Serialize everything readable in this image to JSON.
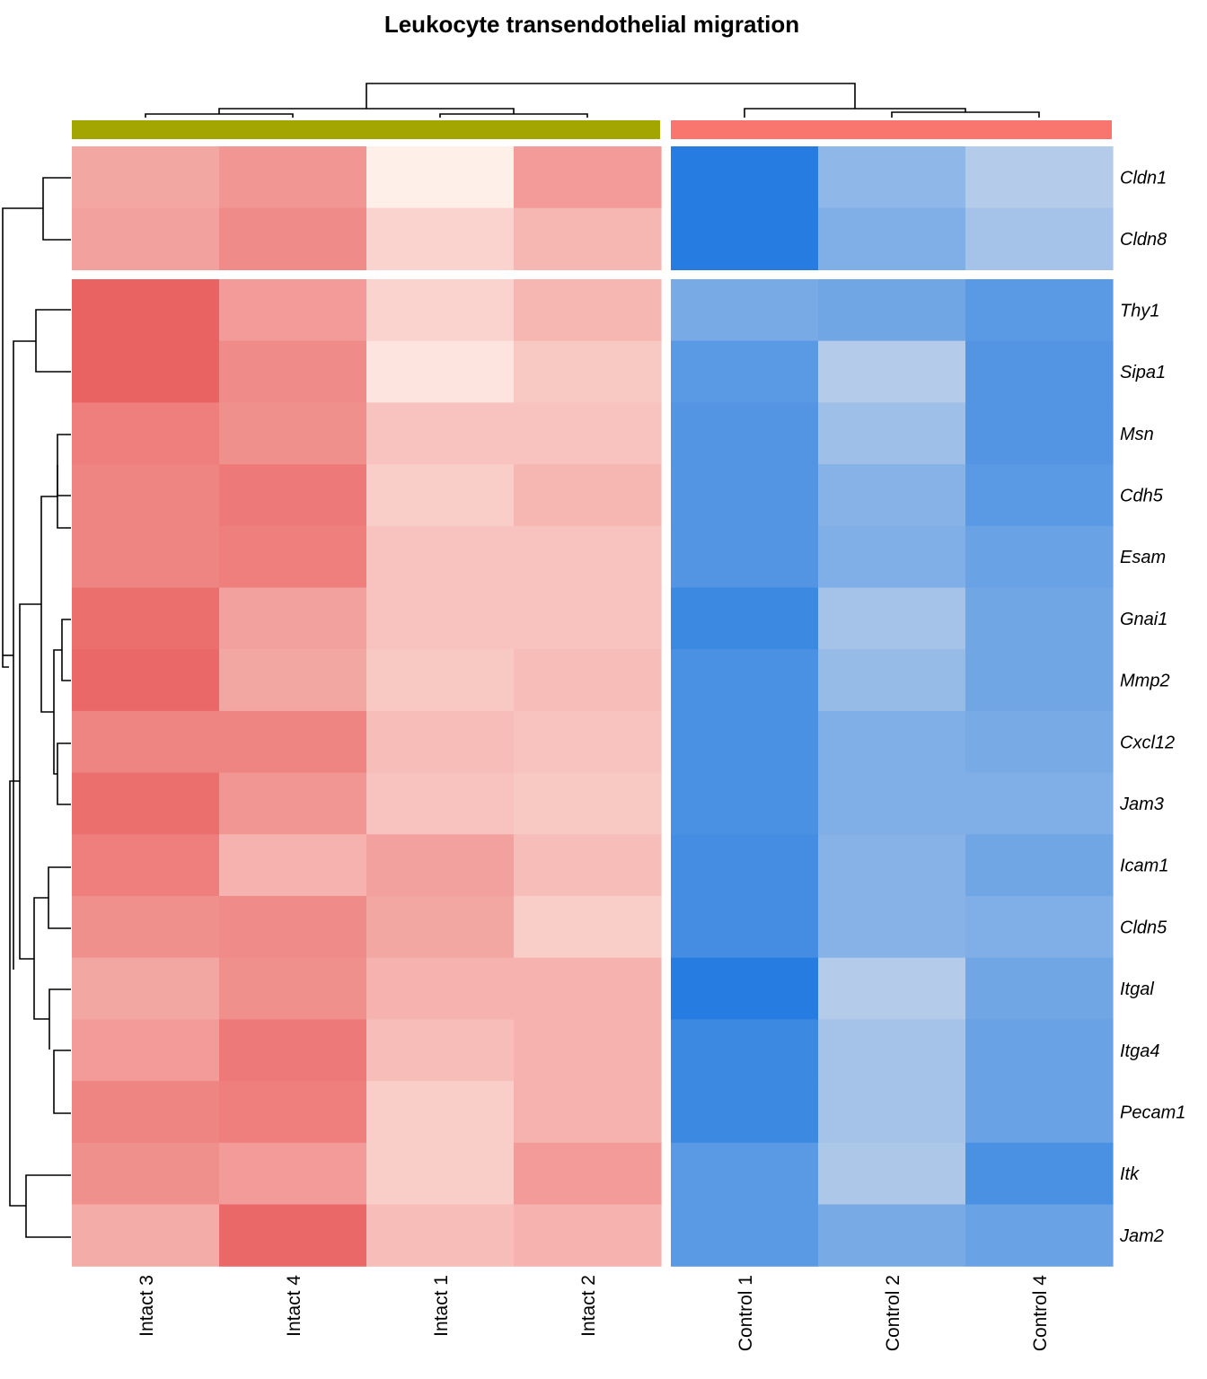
{
  "chart_data": {
    "type": "heatmap",
    "title": "Leukocyte transendothelial migration",
    "xlabel": "",
    "ylabel": "",
    "columns": [
      "Intact 3",
      "Intact 4",
      "Intact 1",
      "Intact 2",
      "Control 1",
      "Control 2",
      "Control 4"
    ],
    "column_groups": [
      {
        "name": "Intact",
        "color": "#A3A500",
        "columns": [
          "Intact 3",
          "Intact 4",
          "Intact 1",
          "Intact 2"
        ]
      },
      {
        "name": "Control",
        "color": "#F8766D",
        "columns": [
          "Control 1",
          "Control 2",
          "Control 4"
        ]
      }
    ],
    "row_groups": [
      {
        "rows": [
          "Cldn1",
          "Cldn8"
        ]
      },
      {
        "rows": [
          "Thy1",
          "Sipa1",
          "Msn",
          "Cdh5",
          "Esam",
          "Gnai1",
          "Mmp2",
          "Cxcl12",
          "Jam3",
          "Icam1",
          "Cldn5",
          "Itgal",
          "Itga4",
          "Pecam1",
          "Itk",
          "Jam2"
        ]
      }
    ],
    "rows": [
      "Cldn1",
      "Cldn8",
      "Thy1",
      "Sipa1",
      "Msn",
      "Cdh5",
      "Esam",
      "Gnai1",
      "Mmp2",
      "Cxcl12",
      "Jam3",
      "Icam1",
      "Cldn5",
      "Itgal",
      "Itga4",
      "Pecam1",
      "Itk",
      "Jam2"
    ],
    "color_scale": {
      "low": "#1E78E0",
      "mid": "#FFF5EE",
      "high": "#E64D4D",
      "min": -1.5,
      "max": 1.5
    },
    "values": [
      [
        0.7,
        0.85,
        0.05,
        0.8,
        -1.45,
        -0.75,
        -0.5
      ],
      [
        0.75,
        0.95,
        0.3,
        0.55,
        -1.45,
        -0.85,
        -0.6
      ],
      [
        1.3,
        0.8,
        0.3,
        0.55,
        -0.9,
        -0.95,
        -1.1
      ],
      [
        1.3,
        0.95,
        0.15,
        0.4,
        -1.1,
        -0.5,
        -1.15
      ],
      [
        1.05,
        0.9,
        0.45,
        0.45,
        -1.15,
        -0.65,
        -1.15
      ],
      [
        1.0,
        1.1,
        0.35,
        0.55,
        -1.15,
        -0.8,
        -1.1
      ],
      [
        1.0,
        1.05,
        0.45,
        0.45,
        -1.15,
        -0.85,
        -1.0
      ],
      [
        1.2,
        0.75,
        0.45,
        0.45,
        -1.3,
        -0.6,
        -0.95
      ],
      [
        1.25,
        0.7,
        0.4,
        0.5,
        -1.2,
        -0.7,
        -0.95
      ],
      [
        1.0,
        1.0,
        0.5,
        0.45,
        -1.2,
        -0.85,
        -0.9
      ],
      [
        1.2,
        0.85,
        0.45,
        0.4,
        -1.2,
        -0.85,
        -0.85
      ],
      [
        1.05,
        0.6,
        0.75,
        0.5,
        -1.25,
        -0.8,
        -0.95
      ],
      [
        0.9,
        0.95,
        0.7,
        0.35,
        -1.25,
        -0.8,
        -0.85
      ],
      [
        0.7,
        0.9,
        0.6,
        0.6,
        -1.45,
        -0.5,
        -0.95
      ],
      [
        0.8,
        1.1,
        0.5,
        0.6,
        -1.3,
        -0.6,
        -1.0
      ],
      [
        1.0,
        1.05,
        0.35,
        0.6,
        -1.3,
        -0.6,
        -1.0
      ],
      [
        0.9,
        0.8,
        0.35,
        0.8,
        -1.1,
        -0.55,
        -1.2
      ],
      [
        0.65,
        1.25,
        0.5,
        0.6,
        -1.1,
        -0.9,
        -1.0
      ]
    ]
  }
}
